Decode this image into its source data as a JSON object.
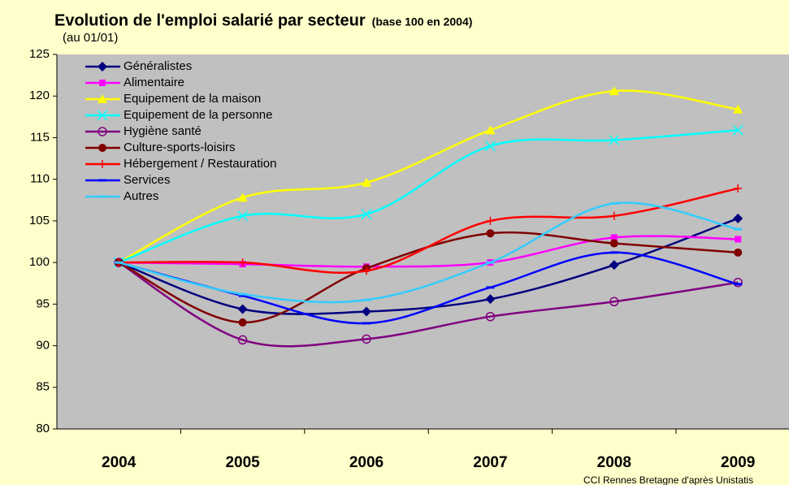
{
  "chart_data": {
    "type": "line",
    "title": "Evolution de l'emploi salarié par secteur",
    "title_note": "(base 100 en 2004)",
    "subtitle": "(au 01/01)",
    "source": "CCI Rennes Bretagne d'après Unistatis",
    "categories": [
      "2004",
      "2005",
      "2006",
      "2007",
      "2008",
      "2009"
    ],
    "ylim": [
      80,
      125
    ],
    "yticks": [
      80,
      85,
      90,
      95,
      100,
      105,
      110,
      115,
      120,
      125
    ],
    "grid": false,
    "legend": "upper left",
    "smooth": true,
    "series": [
      {
        "name": "Généralistes",
        "color": "#000080",
        "marker": "diamond",
        "values": [
          100,
          94.4,
          94.1,
          95.6,
          99.7,
          105.3
        ]
      },
      {
        "name": "Alimentaire",
        "color": "#ff00ff",
        "marker": "square",
        "values": [
          100,
          99.8,
          99.5,
          100,
          103,
          102.8
        ]
      },
      {
        "name": "Equipement de la maison",
        "color": "#ffff00",
        "marker": "triangle",
        "values": [
          100,
          107.8,
          109.6,
          115.9,
          120.6,
          118.4
        ]
      },
      {
        "name": "Equipement de la personne",
        "color": "#00ffff",
        "marker": "x",
        "values": [
          100,
          105.6,
          105.8,
          114,
          114.7,
          115.9
        ]
      },
      {
        "name": "Hygiène santé",
        "color": "#800080",
        "marker": "circle-open",
        "values": [
          100,
          90.7,
          90.8,
          93.5,
          95.3,
          97.6
        ]
      },
      {
        "name": "Culture-sports-loisirs",
        "color": "#800000",
        "marker": "circle",
        "values": [
          100,
          92.8,
          99.3,
          103.5,
          102.3,
          101.2
        ]
      },
      {
        "name": "Hébergement / Restauration",
        "color": "#ff0000",
        "marker": "plus",
        "values": [
          100,
          100,
          99,
          105,
          105.6,
          108.9
        ]
      },
      {
        "name": "Services",
        "color": "#0000ff",
        "marker": "dash",
        "values": [
          100,
          96,
          92.7,
          97,
          101.2,
          97.4
        ]
      },
      {
        "name": "Autres",
        "color": "#33ccff",
        "marker": "dash",
        "values": [
          100,
          96.2,
          95.5,
          100,
          107.1,
          104
        ]
      }
    ]
  }
}
